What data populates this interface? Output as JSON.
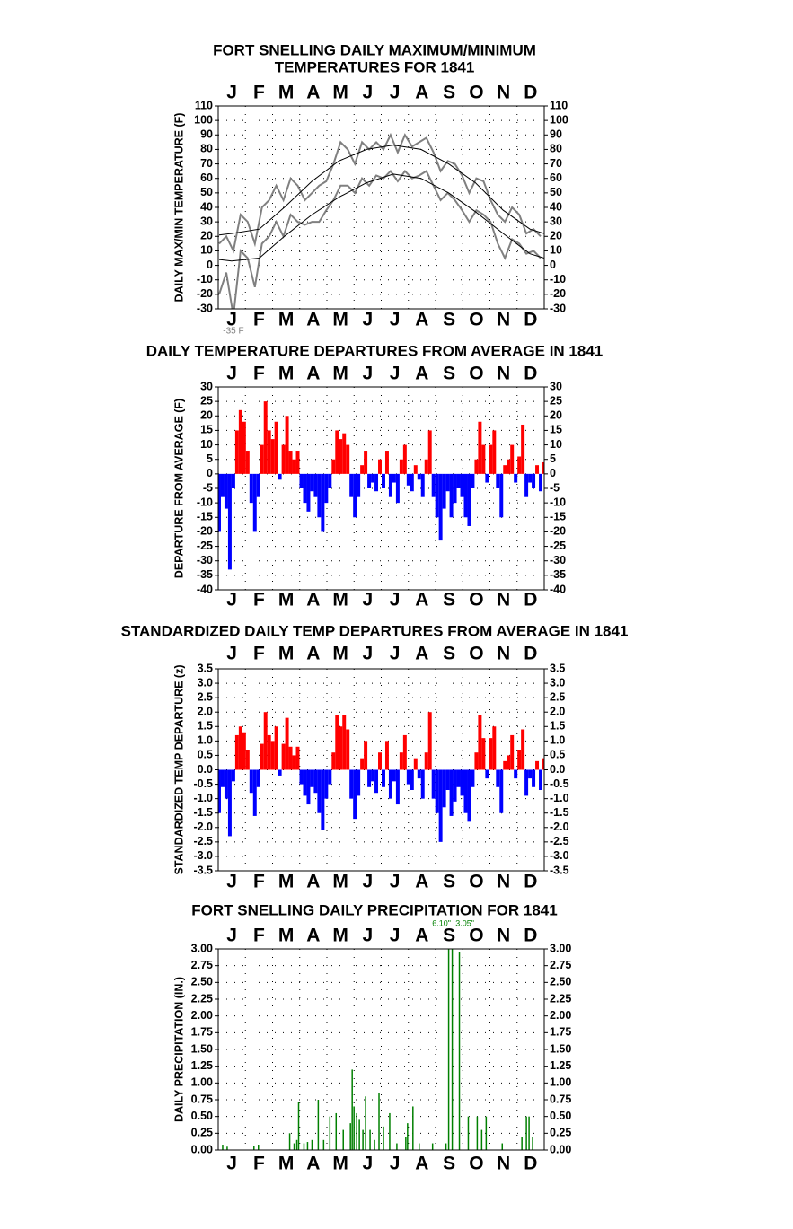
{
  "chart_data": [
    {
      "type": "line",
      "title": [
        "FORT SNELLING DAILY MAXIMUM/MINIMUM",
        "TEMPERATURES FOR 1841"
      ],
      "y_label": "DAILY MAX/MIN TEMPERATURE (F)",
      "months": [
        "J",
        "F",
        "M",
        "A",
        "M",
        "J",
        "J",
        "A",
        "S",
        "O",
        "N",
        "D"
      ],
      "xlim": [
        0,
        365
      ],
      "ylim": [
        -30,
        110
      ],
      "yticks": [
        -30,
        -20,
        -10,
        0,
        10,
        20,
        30,
        40,
        50,
        60,
        70,
        80,
        90,
        100,
        110
      ],
      "grid": true,
      "annotation": "-35 F",
      "annotation_x": 17,
      "annotation_color": "#808080",
      "series": [
        {
          "color": "#808080",
          "x": [
            1,
            9,
            17,
            25,
            33,
            41,
            49,
            57,
            65,
            73,
            81,
            89,
            97,
            105,
            113,
            121,
            129,
            137,
            145,
            153,
            161,
            169,
            177,
            185,
            193,
            201,
            209,
            217,
            225,
            233,
            241,
            249,
            257,
            265,
            273,
            281,
            289,
            297,
            305,
            313,
            321,
            329,
            337,
            345,
            353,
            361
          ],
          "values": [
            15,
            20,
            10,
            35,
            30,
            15,
            40,
            45,
            55,
            45,
            60,
            55,
            45,
            50,
            55,
            58,
            70,
            85,
            80,
            70,
            85,
            80,
            85,
            80,
            90,
            78,
            90,
            82,
            85,
            88,
            78,
            65,
            72,
            70,
            62,
            50,
            60,
            58,
            45,
            35,
            30,
            40,
            35,
            22,
            25,
            20
          ]
        },
        {
          "color": "#808080",
          "x": [
            1,
            9,
            17,
            25,
            33,
            41,
            49,
            57,
            65,
            73,
            81,
            89,
            97,
            105,
            113,
            121,
            129,
            137,
            145,
            153,
            161,
            169,
            177,
            185,
            193,
            201,
            209,
            217,
            225,
            233,
            241,
            249,
            257,
            265,
            273,
            281,
            289,
            297,
            305,
            313,
            321,
            329,
            337,
            345,
            353,
            361
          ],
          "values": [
            -20,
            -5,
            -35,
            10,
            5,
            -15,
            15,
            20,
            30,
            20,
            35,
            30,
            28,
            30,
            30,
            38,
            45,
            55,
            55,
            50,
            60,
            55,
            62,
            60,
            65,
            58,
            65,
            60,
            62,
            65,
            55,
            45,
            50,
            45,
            38,
            30,
            38,
            35,
            30,
            15,
            5,
            18,
            15,
            8,
            10,
            5
          ]
        },
        {
          "color": "#000000",
          "x": [
            1,
            15,
            46,
            74,
            105,
            135,
            166,
            196,
            227,
            258,
            288,
            319,
            349,
            365
          ],
          "values": [
            21,
            22,
            25,
            40,
            58,
            72,
            80,
            83,
            80,
            70,
            57,
            38,
            25,
            22
          ]
        },
        {
          "color": "#000000",
          "x": [
            1,
            15,
            46,
            74,
            105,
            135,
            166,
            196,
            227,
            258,
            288,
            319,
            349,
            365
          ],
          "values": [
            4,
            3,
            5,
            20,
            35,
            47,
            57,
            63,
            60,
            50,
            37,
            22,
            8,
            5
          ]
        }
      ]
    },
    {
      "type": "bar",
      "title": [
        "DAILY TEMPERATURE DEPARTURES FROM AVERAGE IN 1841"
      ],
      "y_label": "DEPARTURE FROM AVERAGE (F)",
      "months": [
        "J",
        "F",
        "M",
        "A",
        "M",
        "J",
        "J",
        "A",
        "S",
        "O",
        "N",
        "D"
      ],
      "xlim": [
        0,
        365
      ],
      "ylim": [
        -40,
        30
      ],
      "yticks": [
        -40,
        -35,
        -30,
        -25,
        -20,
        -15,
        -10,
        -5,
        0,
        5,
        10,
        15,
        20,
        25,
        30
      ],
      "grid": true,
      "positive_color": "#ff0000",
      "negative_color": "#0000ff",
      "bar_days": 4,
      "x": [
        1,
        5,
        9,
        13,
        17,
        21,
        25,
        29,
        33,
        37,
        41,
        45,
        49,
        53,
        57,
        61,
        65,
        69,
        73,
        77,
        81,
        85,
        89,
        93,
        97,
        101,
        105,
        109,
        113,
        117,
        121,
        125,
        129,
        133,
        137,
        141,
        145,
        149,
        153,
        157,
        161,
        165,
        169,
        173,
        177,
        181,
        185,
        189,
        193,
        197,
        201,
        205,
        209,
        213,
        217,
        221,
        225,
        229,
        233,
        237,
        241,
        245,
        249,
        253,
        257,
        261,
        265,
        269,
        273,
        277,
        281,
        285,
        289,
        293,
        297,
        301,
        305,
        309,
        313,
        317,
        321,
        325,
        329,
        333,
        337,
        341,
        345,
        349,
        353,
        357,
        361,
        365
      ],
      "values": [
        -20,
        -8,
        -12,
        -33,
        -5,
        15,
        22,
        18,
        8,
        -10,
        -20,
        -8,
        10,
        25,
        15,
        12,
        18,
        -2,
        10,
        20,
        8,
        5,
        8,
        -5,
        -10,
        -13,
        -6,
        -8,
        -15,
        -20,
        -10,
        -5,
        5,
        15,
        12,
        14,
        10,
        -8,
        -15,
        -8,
        3,
        8,
        -5,
        -3,
        -6,
        5,
        -5,
        8,
        -8,
        -3,
        -10,
        5,
        10,
        -4,
        -6,
        3,
        -2,
        -8,
        5,
        15,
        -8,
        -15,
        -23,
        -12,
        -6,
        -15,
        -10,
        -5,
        -8,
        -15,
        -18,
        -5,
        5,
        18,
        10,
        -3,
        10,
        15,
        -5,
        -15,
        3,
        5,
        10,
        -3,
        6,
        17,
        -8,
        -3,
        -5,
        3,
        -6,
        4
      ]
    },
    {
      "type": "bar",
      "title": [
        "STANDARDIZED DAILY TEMP DEPARTURES FROM AVERAGE IN 1841"
      ],
      "y_label": "STANDARDIZED TEMP DEPARTURE (z)",
      "months": [
        "J",
        "F",
        "M",
        "A",
        "M",
        "J",
        "J",
        "A",
        "S",
        "O",
        "N",
        "D"
      ],
      "xlim": [
        0,
        365
      ],
      "ylim": [
        -3.5,
        3.5
      ],
      "yticks": [
        -3.5,
        {
          "value": -3,
          "label": "-3.0"
        },
        -2.5,
        {
          "value": -2,
          "label": "-2.0"
        },
        -1.5,
        {
          "value": -1,
          "label": "-1.0"
        },
        -0.5,
        {
          "value": 0,
          "label": "0.0"
        },
        0.5,
        {
          "value": 1,
          "label": "1.0"
        },
        1.5,
        {
          "value": 2,
          "label": "2.0"
        },
        2.5,
        {
          "value": 3,
          "label": "3.0"
        },
        3.5
      ],
      "grid": true,
      "positive_color": "#ff0000",
      "negative_color": "#0000ff",
      "bar_days": 4,
      "x": [
        1,
        5,
        9,
        13,
        17,
        21,
        25,
        29,
        33,
        37,
        41,
        45,
        49,
        53,
        57,
        61,
        65,
        69,
        73,
        77,
        81,
        85,
        89,
        93,
        97,
        101,
        105,
        109,
        113,
        117,
        121,
        125,
        129,
        133,
        137,
        141,
        145,
        149,
        153,
        157,
        161,
        165,
        169,
        173,
        177,
        181,
        185,
        189,
        193,
        197,
        201,
        205,
        209,
        213,
        217,
        221,
        225,
        229,
        233,
        237,
        241,
        245,
        249,
        253,
        257,
        261,
        265,
        269,
        273,
        277,
        281,
        285,
        289,
        293,
        297,
        301,
        305,
        309,
        313,
        317,
        321,
        325,
        329,
        333,
        337,
        341,
        345,
        349,
        353,
        357,
        361,
        365
      ],
      "values": [
        -1.5,
        -0.6,
        -1.0,
        -2.3,
        -0.4,
        1.2,
        1.5,
        1.3,
        0.7,
        -0.8,
        -1.6,
        -0.6,
        0.9,
        2.0,
        1.2,
        1.0,
        1.5,
        -0.2,
        0.9,
        1.8,
        0.8,
        0.5,
        0.8,
        -0.5,
        -0.9,
        -1.2,
        -0.6,
        -0.8,
        -1.5,
        -2.1,
        -1.0,
        -0.5,
        0.6,
        1.9,
        1.5,
        1.9,
        1.4,
        -1.0,
        -1.7,
        -0.9,
        0.4,
        1.0,
        -0.6,
        -0.4,
        -0.8,
        0.6,
        -0.6,
        1.0,
        -1.0,
        -0.4,
        -1.2,
        0.6,
        1.2,
        -0.5,
        -0.7,
        0.4,
        -0.3,
        -1.0,
        0.6,
        2.0,
        -1.0,
        -1.5,
        -2.5,
        -1.3,
        -0.7,
        -1.6,
        -1.1,
        -0.6,
        -0.9,
        -1.5,
        -1.8,
        -0.6,
        0.6,
        1.9,
        1.1,
        -0.3,
        1.1,
        1.5,
        -0.6,
        -1.5,
        0.3,
        0.5,
        1.2,
        -0.3,
        0.7,
        1.4,
        -0.9,
        -0.3,
        -0.6,
        0.3,
        -0.7,
        0.4
      ]
    },
    {
      "type": "precip",
      "title": [
        "FORT SNELLING DAILY PRECIPITATION FOR 1841"
      ],
      "y_label": "DAILY PRECIPITATION (IN.)",
      "months": [
        "J",
        "F",
        "M",
        "A",
        "M",
        "J",
        "J",
        "A",
        "S",
        "O",
        "N",
        "D"
      ],
      "xlim": [
        0,
        365
      ],
      "ylim": [
        0,
        3
      ],
      "yticks": [
        {
          "value": 0,
          "label": "0.00"
        },
        {
          "value": 0.25,
          "label": "0.25"
        },
        {
          "value": 0.5,
          "label": "0.50"
        },
        {
          "value": 0.75,
          "label": "0.75"
        },
        {
          "value": 1,
          "label": "1.00"
        },
        {
          "value": 1.25,
          "label": "1.25"
        },
        {
          "value": 1.5,
          "label": "1.50"
        },
        {
          "value": 1.75,
          "label": "1.75"
        },
        {
          "value": 2,
          "label": "2.00"
        },
        {
          "value": 2.25,
          "label": "2.25"
        },
        {
          "value": 2.5,
          "label": "2.50"
        },
        {
          "value": 2.75,
          "label": "2.75"
        },
        {
          "value": 3,
          "label": "3.00"
        }
      ],
      "grid": true,
      "color": "#008000",
      "x": [
        5,
        10,
        40,
        45,
        80,
        85,
        88,
        90,
        96,
        100,
        105,
        112,
        118,
        125,
        132,
        140,
        148,
        150,
        152,
        155,
        158,
        162,
        165,
        170,
        175,
        180,
        185,
        192,
        200,
        210,
        212,
        218,
        225,
        240,
        255,
        258,
        262,
        270,
        280,
        290,
        295,
        300,
        318,
        340,
        345,
        348,
        352
      ],
      "values": [
        0.08,
        0.05,
        0.06,
        0.08,
        0.25,
        0.1,
        0.15,
        0.72,
        0.1,
        0.12,
        0.15,
        0.75,
        0.15,
        0.5,
        0.55,
        0.3,
        0.4,
        1.2,
        0.65,
        0.55,
        0.45,
        0.3,
        0.8,
        0.3,
        0.15,
        0.85,
        0.35,
        0.55,
        0.1,
        0.2,
        0.4,
        0.65,
        0.1,
        0.1,
        0.1,
        3.05,
        6.1,
        2.95,
        0.5,
        0.5,
        0.3,
        0.5,
        0.1,
        0.2,
        0.5,
        0.5,
        0.2
      ],
      "value_labels": [
        null,
        null,
        null,
        null,
        null,
        null,
        null,
        null,
        null,
        null,
        null,
        null,
        null,
        null,
        null,
        null,
        null,
        null,
        null,
        null,
        null,
        null,
        null,
        null,
        null,
        null,
        null,
        null,
        null,
        null,
        null,
        null,
        null,
        null,
        null,
        "3.05\"",
        "6.10\"",
        null,
        null,
        null,
        null,
        null,
        null,
        null,
        null,
        null,
        null
      ]
    }
  ]
}
